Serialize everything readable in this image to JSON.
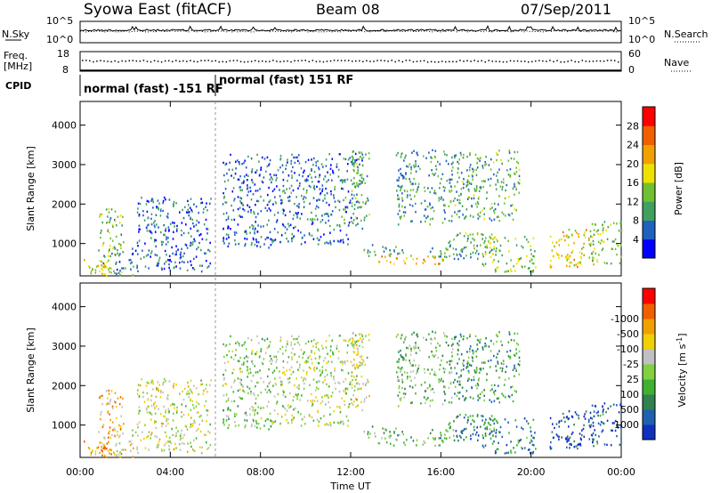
{
  "header": {
    "station": "Syowa East (fitACF)",
    "beam": "Beam 08",
    "date": "07/Sep/2011"
  },
  "aux_panels": {
    "nsky": {
      "label": "N.Sky",
      "ticks_left": [
        "10^5",
        "10^0"
      ],
      "ticks_right": [
        "10^5",
        "10^0"
      ],
      "right_label": "N.Search"
    },
    "freq": {
      "label_line1": "Freq.",
      "label_line2": "[MHz]",
      "ticks_left": [
        "18",
        "8"
      ],
      "ticks_right": [
        "60",
        "0"
      ],
      "right_label": "Nave"
    },
    "cpid": {
      "label": "CPID",
      "segments": [
        {
          "start_hour": 0,
          "end_hour": 6,
          "text": "normal (fast) -151 RF"
        },
        {
          "start_hour": 6,
          "end_hour": 24,
          "text": "normal (fast) 151 RF"
        }
      ]
    }
  },
  "chart_data": [
    {
      "type": "heatmap",
      "name": "power",
      "ylabel": "Slant Range [km]",
      "ylim": [
        180,
        4600
      ],
      "yticks": [
        1000,
        2000,
        3000,
        4000
      ],
      "xlim": [
        0,
        24
      ],
      "colorbar": {
        "label": "Power [dB]",
        "ticks": [
          "4",
          "8",
          "12",
          "16",
          "20",
          "24",
          "28"
        ],
        "colors": [
          "#0000ff",
          "#2060c0",
          "#40a060",
          "#70c030",
          "#f0e000",
          "#f0a000",
          "#f06000",
          "#ff0000"
        ]
      },
      "echo_regions": [
        {
          "t0": 0.1,
          "t1": 1.4,
          "r0": 200,
          "r1": 650,
          "value": 0.55
        },
        {
          "t0": 0.8,
          "t1": 1.9,
          "r0": 200,
          "r1": 1900,
          "value": 0.4
        },
        {
          "t0": 1.5,
          "t1": 2.6,
          "r0": 220,
          "r1": 900,
          "value": 0.25
        },
        {
          "t0": 2.5,
          "t1": 5.8,
          "r0": 300,
          "r1": 2200,
          "value": 0.2
        },
        {
          "t0": 6.3,
          "t1": 8.5,
          "r0": 900,
          "r1": 3300,
          "value": 0.2
        },
        {
          "t0": 8.5,
          "t1": 12.0,
          "r0": 1000,
          "r1": 1400,
          "value": 0.2
        },
        {
          "t0": 8.5,
          "t1": 12.5,
          "r0": 1400,
          "r1": 3300,
          "value": 0.22
        },
        {
          "t0": 12.0,
          "t1": 12.8,
          "r0": 1500,
          "r1": 3400,
          "value": 0.35
        },
        {
          "t0": 13.2,
          "t1": 16.2,
          "r0": 500,
          "r1": 750,
          "value": 0.65
        },
        {
          "t0": 12.5,
          "t1": 14.5,
          "r0": 700,
          "r1": 1000,
          "value": 0.3
        },
        {
          "t0": 14.0,
          "t1": 16.5,
          "r0": 1500,
          "r1": 3400,
          "value": 0.3
        },
        {
          "t0": 15.5,
          "t1": 17.0,
          "r0": 600,
          "r1": 1100,
          "value": 0.3
        },
        {
          "t0": 16.5,
          "t1": 18.5,
          "r0": 600,
          "r1": 1300,
          "value": 0.35
        },
        {
          "t0": 17.8,
          "t1": 20.2,
          "r0": 300,
          "r1": 1200,
          "value": 0.45
        },
        {
          "t0": 16.5,
          "t1": 19.5,
          "r0": 1600,
          "r1": 3400,
          "value": 0.35
        },
        {
          "t0": 20.8,
          "t1": 22.8,
          "r0": 400,
          "r1": 1400,
          "value": 0.6
        },
        {
          "t0": 22.5,
          "t1": 24.0,
          "r0": 500,
          "r1": 1600,
          "value": 0.45
        }
      ]
    },
    {
      "type": "heatmap",
      "name": "velocity",
      "ylabel": "Slant Range [km]",
      "xlabel": "Time UT",
      "ylim": [
        180,
        4600
      ],
      "yticks": [
        1000,
        2000,
        3000,
        4000
      ],
      "xlim": [
        0,
        24
      ],
      "xticks": [
        "00:00",
        "04:00",
        "08:00",
        "12:00",
        "16:00",
        "20:00",
        "00:00"
      ],
      "colorbar": {
        "label": "Velocity [m s^-1]",
        "ticks": [
          "1000",
          "500",
          "100",
          "25",
          "-25",
          "-100",
          "-500",
          "-1000"
        ],
        "colors": [
          "#1030c0",
          "#2060b0",
          "#308050",
          "#40b030",
          "#80d040",
          "#c0c0c0",
          "#f0d000",
          "#f0a000",
          "#f06000",
          "#ff0000"
        ]
      },
      "echo_regions": [
        {
          "t0": 0.1,
          "t1": 1.4,
          "r0": 200,
          "r1": 650,
          "value": 0.75
        },
        {
          "t0": 0.8,
          "t1": 1.9,
          "r0": 200,
          "r1": 1900,
          "value": 0.7
        },
        {
          "t0": 1.5,
          "t1": 2.6,
          "r0": 220,
          "r1": 900,
          "value": 0.6
        },
        {
          "t0": 2.5,
          "t1": 5.8,
          "r0": 300,
          "r1": 2200,
          "value": 0.55
        },
        {
          "t0": 6.3,
          "t1": 8.5,
          "r0": 900,
          "r1": 3300,
          "value": 0.45
        },
        {
          "t0": 8.5,
          "t1": 12.0,
          "r0": 1000,
          "r1": 1400,
          "value": 0.5
        },
        {
          "t0": 8.5,
          "t1": 12.5,
          "r0": 1400,
          "r1": 3300,
          "value": 0.5
        },
        {
          "t0": 12.0,
          "t1": 12.8,
          "r0": 1500,
          "r1": 3400,
          "value": 0.55
        },
        {
          "t0": 13.2,
          "t1": 16.2,
          "r0": 500,
          "r1": 750,
          "value": 0.38
        },
        {
          "t0": 12.5,
          "t1": 14.5,
          "r0": 700,
          "r1": 1000,
          "value": 0.35
        },
        {
          "t0": 14.0,
          "t1": 16.5,
          "r0": 1500,
          "r1": 3400,
          "value": 0.4
        },
        {
          "t0": 15.5,
          "t1": 17.0,
          "r0": 600,
          "r1": 1100,
          "value": 0.35
        },
        {
          "t0": 16.5,
          "t1": 18.5,
          "r0": 600,
          "r1": 1300,
          "value": 0.2
        },
        {
          "t0": 17.8,
          "t1": 20.2,
          "r0": 300,
          "r1": 1200,
          "value": 0.25
        },
        {
          "t0": 16.5,
          "t1": 19.5,
          "r0": 1600,
          "r1": 3400,
          "value": 0.3
        },
        {
          "t0": 20.8,
          "t1": 22.8,
          "r0": 400,
          "r1": 1400,
          "value": 0.1
        },
        {
          "t0": 22.5,
          "t1": 24.0,
          "r0": 500,
          "r1": 1600,
          "value": 0.15
        }
      ]
    }
  ]
}
